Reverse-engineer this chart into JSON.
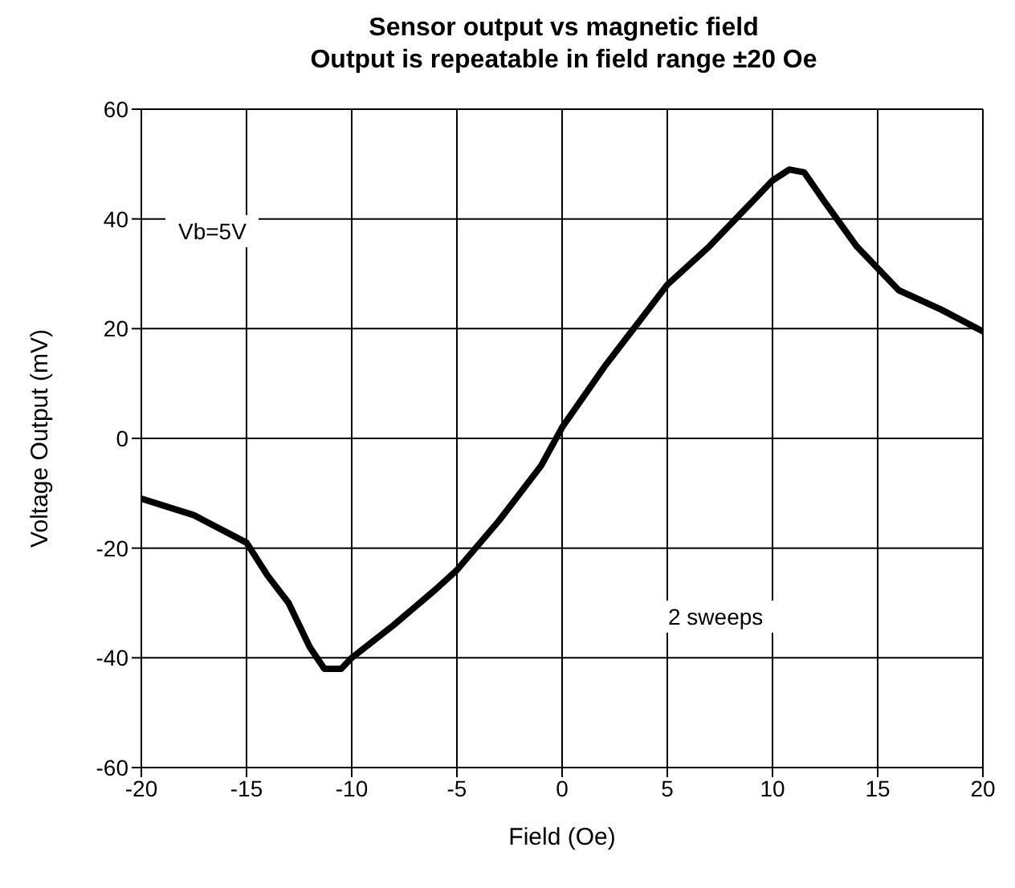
{
  "chart_data": {
    "type": "line",
    "title": "Sensor output vs magnetic field",
    "subtitle": "Output is repeatable in field range ±20 Oe",
    "xlabel": "Field (Oe)",
    "ylabel": "Voltage Output (mV)",
    "x": [
      -20,
      -17.5,
      -15,
      -14,
      -13,
      -12,
      -11.3,
      -10.5,
      -10,
      -8,
      -6,
      -5,
      -3,
      -1,
      0,
      2,
      4,
      5,
      7,
      9,
      10,
      10.8,
      11.5,
      12.5,
      14,
      16,
      18,
      20
    ],
    "series": [
      {
        "color": "#000000",
        "values": [
          -11,
          -14,
          -19,
          -25,
          -30,
          -38,
          -42,
          -42,
          -40,
          -34,
          -27.5,
          -24,
          -15,
          -5,
          2,
          13,
          23,
          28,
          35,
          43,
          47,
          49,
          48.5,
          43,
          35,
          27,
          23.5,
          19.5
        ]
      }
    ],
    "xlim": [
      -20,
      20
    ],
    "xticks": [
      -20,
      -15,
      -10,
      -5,
      0,
      5,
      10,
      15,
      20
    ],
    "ylim": [
      -60,
      60
    ],
    "yticks": [
      -60,
      -40,
      -20,
      0,
      20,
      40,
      60
    ],
    "grid": true,
    "legend": false,
    "marker": "none",
    "line_style": "solid",
    "annotations": [
      "Vb=5V",
      "2 sweeps"
    ]
  }
}
